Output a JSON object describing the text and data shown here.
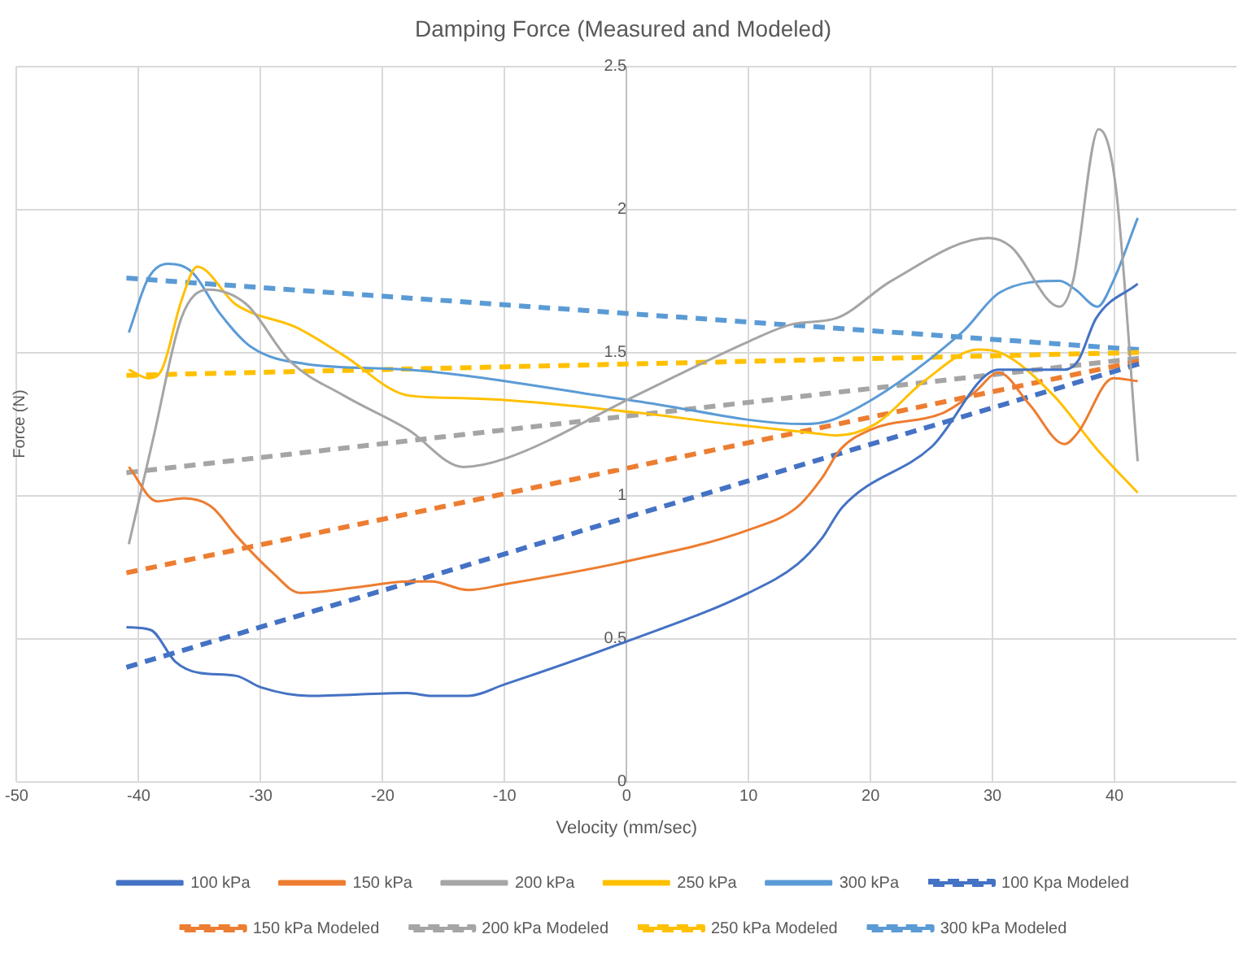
{
  "chart_data": {
    "type": "line",
    "title": "Damping Force (Measured and Modeled)",
    "xlabel": "Velocity (mm/sec)",
    "ylabel": "Force (N)",
    "xlim": [
      -50,
      50
    ],
    "xticks": [
      -50,
      -40,
      -30,
      -20,
      -10,
      0,
      10,
      20,
      30,
      40
    ],
    "ylim": [
      0,
      2.5
    ],
    "yticks": [
      0,
      0.5,
      1,
      1.5,
      2,
      2.5
    ],
    "grid": true,
    "legend": "bottom",
    "marker": "none",
    "series": [
      {
        "name": "100 kPa",
        "color": "#4472c4",
        "line_style": "solid",
        "x": [
          -41,
          -39,
          -37,
          -35,
          -32,
          -30,
          -26,
          -18,
          -16,
          -13,
          -10,
          0,
          10,
          14,
          16,
          17.7,
          25,
          30.5,
          32,
          35.9,
          37,
          38.5,
          41.9
        ],
        "values": [
          0.54,
          0.53,
          0.42,
          0.38,
          0.37,
          0.33,
          0.3,
          0.31,
          0.3,
          0.3,
          0.34,
          0.49,
          0.66,
          0.76,
          0.85,
          0.96,
          1.17,
          1.44,
          1.44,
          1.44,
          1.47,
          1.62,
          1.74
        ]
      },
      {
        "name": "150 kPa",
        "color": "#ed7d31",
        "line_style": "solid",
        "x": [
          -40.8,
          -38.5,
          -36.3,
          -34,
          -32,
          -29,
          -26.8,
          -22,
          -17.9,
          -16,
          -13,
          -10,
          0,
          10,
          14,
          16,
          17.5,
          20,
          26,
          28.5,
          30.5,
          33,
          35.9,
          37,
          39.9,
          41.9
        ],
        "values": [
          1.1,
          0.98,
          0.99,
          0.96,
          0.86,
          0.73,
          0.66,
          0.68,
          0.7,
          0.7,
          0.67,
          0.69,
          0.77,
          0.88,
          0.96,
          1.06,
          1.16,
          1.23,
          1.29,
          1.36,
          1.43,
          1.32,
          1.18,
          1.22,
          1.41,
          1.4
        ]
      },
      {
        "name": "200 kPa",
        "color": "#a5a5a5",
        "line_style": "solid",
        "x": [
          -40.8,
          -38.8,
          -36.5,
          -34.3,
          -31.2,
          -27.6,
          -23.2,
          -17.9,
          -13.4,
          -9.9,
          0.8,
          10.1,
          13.7,
          17.2,
          21.7,
          29.7,
          31.5,
          35.5,
          36.6,
          38.7,
          40.1,
          41.9
        ],
        "values": [
          0.83,
          1.2,
          1.62,
          1.72,
          1.67,
          1.47,
          1.35,
          1.23,
          1.1,
          1.13,
          1.35,
          1.54,
          1.6,
          1.62,
          1.75,
          1.9,
          1.87,
          1.66,
          1.75,
          2.28,
          2.08,
          1.12
        ]
      },
      {
        "name": "250 kPa",
        "color": "#ffc000",
        "line_style": "solid",
        "x": [
          -40.8,
          -39.2,
          -38.1,
          -36.5,
          -35.2,
          -32.1,
          -30.8,
          -27.2,
          -23.2,
          -17.9,
          -13,
          0.8,
          8.4,
          15,
          17.2,
          20.4,
          24.4,
          28.8,
          30.6,
          35,
          38.6,
          41.9
        ],
        "values": [
          1.44,
          1.41,
          1.44,
          1.68,
          1.8,
          1.67,
          1.64,
          1.59,
          1.49,
          1.35,
          1.34,
          1.29,
          1.25,
          1.22,
          1.21,
          1.25,
          1.4,
          1.51,
          1.5,
          1.35,
          1.16,
          1.01
        ]
      },
      {
        "name": "300 kPa",
        "color": "#5b9bd5",
        "line_style": "solid",
        "x": [
          -40.8,
          -39.2,
          -37.6,
          -35.6,
          -33.4,
          -30.8,
          -26.3,
          -17.9,
          0.8,
          14.6,
          17.2,
          27.5,
          30.6,
          35.5,
          36.8,
          38.6,
          39.9,
          41.9
        ],
        "values": [
          1.57,
          1.76,
          1.81,
          1.78,
          1.64,
          1.52,
          1.46,
          1.44,
          1.33,
          1.25,
          1.27,
          1.57,
          1.71,
          1.75,
          1.72,
          1.66,
          1.75,
          1.97
        ]
      },
      {
        "name": "100 Kpa Modeled",
        "color": "#4472c4",
        "line_style": "dashed",
        "x": [
          -41,
          42
        ],
        "values": [
          0.4,
          1.46
        ]
      },
      {
        "name": "150 kPa Modeled",
        "color": "#ed7d31",
        "line_style": "dashed",
        "x": [
          -41,
          42
        ],
        "values": [
          0.73,
          1.47
        ]
      },
      {
        "name": "200 kPa Modeled",
        "color": "#a5a5a5",
        "line_style": "dashed",
        "x": [
          -41,
          42
        ],
        "values": [
          1.08,
          1.48
        ]
      },
      {
        "name": "250 kPa Modeled",
        "color": "#ffc000",
        "line_style": "dashed",
        "x": [
          -41,
          42
        ],
        "values": [
          1.42,
          1.5
        ]
      },
      {
        "name": "300 kPa Modeled",
        "color": "#5b9bd5",
        "line_style": "dashed",
        "x": [
          -41,
          42
        ],
        "values": [
          1.76,
          1.51
        ]
      }
    ]
  }
}
